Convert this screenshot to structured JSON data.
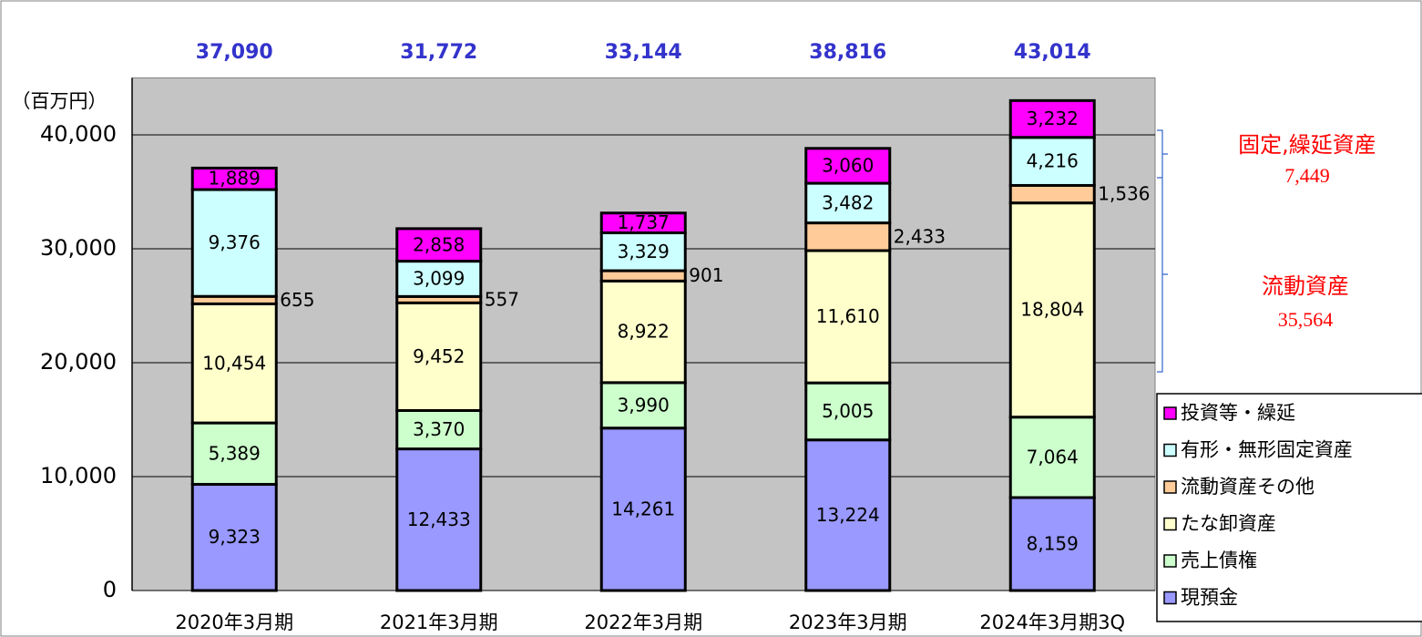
{
  "chart_data": {
    "type": "bar",
    "stacked": true,
    "y_axis_label": "（百万円）",
    "categories": [
      "2020年3月期",
      "2021年3月期",
      "2022年3月期",
      "2023年3月期",
      "2024年3月期3Q"
    ],
    "series": [
      {
        "name": "現預金",
        "color": "#9999ff",
        "values": [
          9323,
          12433,
          14261,
          13224,
          8159
        ],
        "value_labels": [
          "9,323",
          "12,433",
          "14,261",
          "13,224",
          "8,159"
        ]
      },
      {
        "name": "売上債権",
        "color": "#ccffcc",
        "values": [
          5389,
          3370,
          3990,
          5005,
          7064
        ],
        "value_labels": [
          "5,389",
          "3,370",
          "3,990",
          "5,005",
          "7,064"
        ]
      },
      {
        "name": "たな卸資産",
        "color": "#ffffcc",
        "values": [
          10454,
          9452,
          8922,
          11610,
          18804
        ],
        "value_labels": [
          "10,454",
          "9,452",
          "8,922",
          "11,610",
          "18,804"
        ]
      },
      {
        "name": "流動資産その他",
        "color": "#ffcc99",
        "values": [
          655,
          557,
          901,
          2433,
          1536
        ],
        "value_labels": [
          "655",
          "557",
          "901",
          "2,433",
          "1,536"
        ]
      },
      {
        "name": "有形・無形固定資産",
        "color": "#ccffff",
        "values": [
          9376,
          3099,
          3329,
          3482,
          4216
        ],
        "value_labels": [
          "9,376",
          "3,099",
          "3,329",
          "3,482",
          "4,216"
        ]
      },
      {
        "name": "投資等・繰延",
        "color": "#ff00ff",
        "values": [
          1889,
          2858,
          1737,
          3060,
          3232
        ],
        "value_labels": [
          "1,889",
          "2,858",
          "1,737",
          "3,060",
          "3,232"
        ]
      }
    ],
    "total_labels": [
      "37,090",
      "31,772",
      "33,144",
      "38,816",
      "43,014"
    ],
    "ylim": [
      0,
      45000
    ],
    "yticks": [
      0,
      {
        "value": 10000,
        "label": "10,000"
      },
      {
        "value": 20000,
        "label": "20,000"
      },
      {
        "value": 30000,
        "label": "30,000"
      },
      {
        "value": 40000,
        "label": "40,000"
      }
    ],
    "grid": true,
    "legend": "lower right",
    "annotations": [
      {
        "label": "固定,繰延資産",
        "value": "7,449"
      },
      {
        "label": "流動資産",
        "value": "35,564"
      }
    ]
  }
}
